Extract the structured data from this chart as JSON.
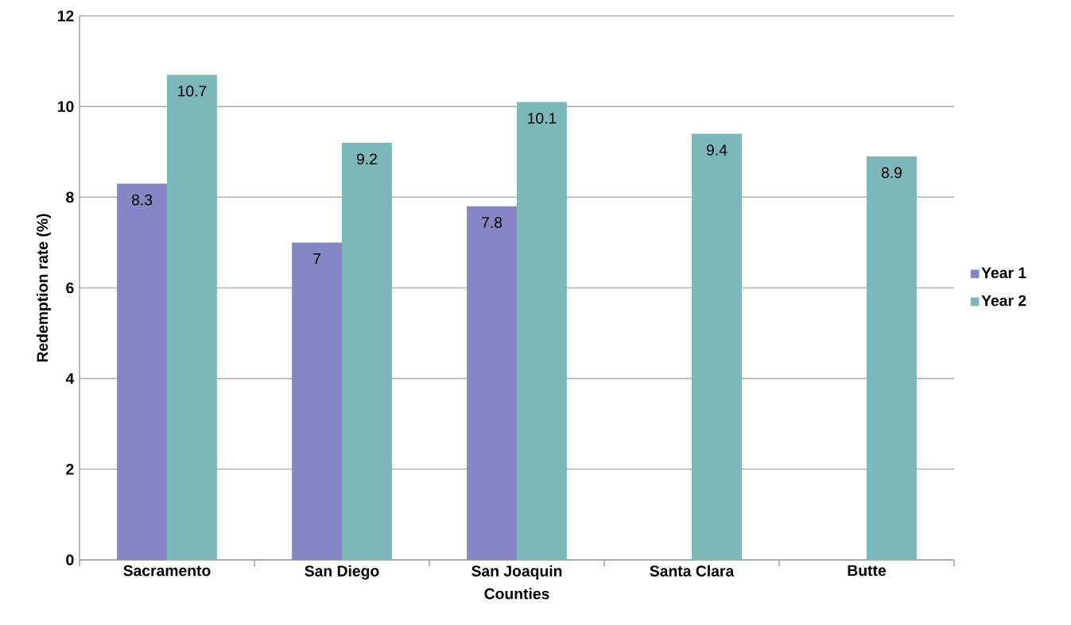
{
  "chart_data": {
    "type": "bar",
    "xlabel": "Counties",
    "ylabel": "Redemption rate (%)",
    "categories": [
      "Sacramento",
      "San Diego",
      "San Joaquin",
      "Santa Clara",
      "Butte"
    ],
    "series": [
      {
        "name": "Year 1",
        "color": "#8686c6",
        "values": [
          8.3,
          7,
          7.8,
          null,
          null
        ]
      },
      {
        "name": "Year 2",
        "color": "#7cb8ba",
        "values": [
          10.7,
          9.2,
          10.1,
          9.4,
          8.9
        ]
      }
    ],
    "ylim": [
      0,
      12
    ],
    "yticks": [
      0,
      2,
      4,
      6,
      8,
      10,
      12
    ],
    "grid": "y",
    "legend": "right",
    "data_labels": true
  }
}
